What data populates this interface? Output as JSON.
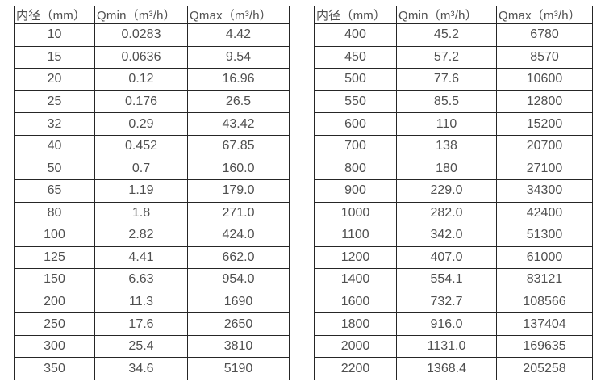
{
  "colors": {
    "background": "#ffffff",
    "border": "#262626",
    "text": "#4f4f4f"
  },
  "tables": [
    {
      "name": "flow-table-left",
      "headers": [
        "内径（mm）",
        "Qmin（m³/h）",
        "Qmax（m³/h）"
      ],
      "rows": [
        [
          "10",
          "0.0283",
          "4.42"
        ],
        [
          "15",
          "0.0636",
          "9.54"
        ],
        [
          "20",
          "0.12",
          "16.96"
        ],
        [
          "25",
          "0.176",
          "26.5"
        ],
        [
          "32",
          "0.29",
          "43.42"
        ],
        [
          "40",
          "0.452",
          "67.85"
        ],
        [
          "50",
          "0.7",
          "160.0"
        ],
        [
          "65",
          "1.19",
          "179.0"
        ],
        [
          "80",
          "1.8",
          "271.0"
        ],
        [
          "100",
          "2.82",
          "424.0"
        ],
        [
          "125",
          "4.41",
          "662.0"
        ],
        [
          "150",
          "6.63",
          "954.0"
        ],
        [
          "200",
          "11.3",
          "1690"
        ],
        [
          "250",
          "17.6",
          "2650"
        ],
        [
          "300",
          "25.4",
          "3810"
        ],
        [
          "350",
          "34.6",
          "5190"
        ]
      ]
    },
    {
      "name": "flow-table-right",
      "headers": [
        "内径（mm）",
        "Qmin（m³/h）",
        "Qmax（m³/h）"
      ],
      "rows": [
        [
          "400",
          "45.2",
          "6780"
        ],
        [
          "450",
          "57.2",
          "8570"
        ],
        [
          "500",
          "77.6",
          "10600"
        ],
        [
          "550",
          "85.5",
          "12800"
        ],
        [
          "600",
          "110",
          "15200"
        ],
        [
          "700",
          "138",
          "20700"
        ],
        [
          "800",
          "180",
          "27100"
        ],
        [
          "900",
          "229.0",
          "34300"
        ],
        [
          "1000",
          "282.0",
          "42400"
        ],
        [
          "1100",
          "342.0",
          "51300"
        ],
        [
          "1200",
          "407.0",
          "61000"
        ],
        [
          "1400",
          "554.1",
          "83121"
        ],
        [
          "1600",
          "732.7",
          "108566"
        ],
        [
          "1800",
          "916.0",
          "137404"
        ],
        [
          "2000",
          "1131.0",
          "169635"
        ],
        [
          "2200",
          "1368.4",
          "205258"
        ]
      ]
    }
  ]
}
